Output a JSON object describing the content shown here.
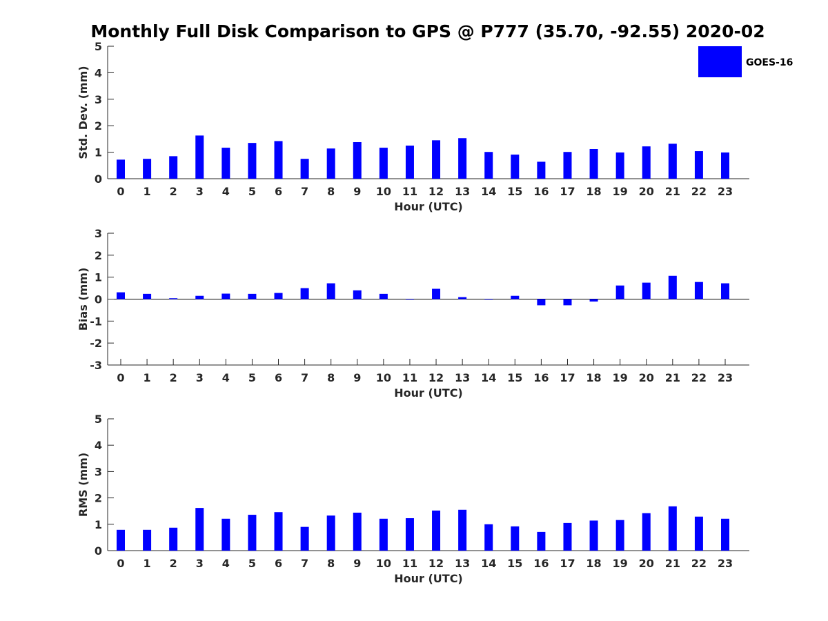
{
  "title": "Monthly Full Disk Comparison to GPS @ P777 (35.70, -92.55) 2020-02",
  "legend": {
    "label": "GOES-16",
    "color": "#0000ff",
    "position": "top-right"
  },
  "chart_data": [
    {
      "type": "bar",
      "xlabel": "Hour (UTC)",
      "ylabel": "Std. Dev. (mm)",
      "ylim": [
        0,
        5
      ],
      "yticks": [
        "0",
        "1",
        "2",
        "3",
        "4",
        "5"
      ],
      "categories": [
        "0",
        "1",
        "2",
        "3",
        "4",
        "5",
        "6",
        "7",
        "8",
        "9",
        "10",
        "11",
        "12",
        "13",
        "14",
        "15",
        "16",
        "17",
        "18",
        "19",
        "20",
        "21",
        "22",
        "23"
      ],
      "series": [
        {
          "name": "GOES-16",
          "color": "#0000ff",
          "values": [
            0.72,
            0.75,
            0.85,
            1.63,
            1.17,
            1.35,
            1.42,
            0.75,
            1.14,
            1.38,
            1.17,
            1.25,
            1.45,
            1.53,
            1.01,
            0.91,
            0.64,
            1.01,
            1.12,
            0.99,
            1.22,
            1.32,
            1.04,
            0.99
          ]
        }
      ]
    },
    {
      "type": "bar",
      "xlabel": "Hour (UTC)",
      "ylabel": "Bias (mm)",
      "ylim": [
        -3,
        3
      ],
      "yticks": [
        "-3",
        "-2",
        "-1",
        "0",
        "1",
        "2",
        "3"
      ],
      "categories": [
        "0",
        "1",
        "2",
        "3",
        "4",
        "5",
        "6",
        "7",
        "8",
        "9",
        "10",
        "11",
        "12",
        "13",
        "14",
        "15",
        "16",
        "17",
        "18",
        "19",
        "20",
        "21",
        "22",
        "23"
      ],
      "series": [
        {
          "name": "GOES-16",
          "color": "#0000ff",
          "values": [
            0.31,
            0.24,
            0.04,
            0.15,
            0.25,
            0.24,
            0.28,
            0.5,
            0.72,
            0.4,
            0.24,
            -0.02,
            0.47,
            0.09,
            0.0,
            0.15,
            -0.28,
            -0.28,
            -0.11,
            0.62,
            0.75,
            1.06,
            0.78,
            0.72
          ]
        }
      ]
    },
    {
      "type": "bar",
      "xlabel": "Hour (UTC)",
      "ylabel": "RMS (mm)",
      "ylim": [
        0,
        5
      ],
      "yticks": [
        "0",
        "1",
        "2",
        "3",
        "4",
        "5"
      ],
      "categories": [
        "0",
        "1",
        "2",
        "3",
        "4",
        "5",
        "6",
        "7",
        "8",
        "9",
        "10",
        "11",
        "12",
        "13",
        "14",
        "15",
        "16",
        "17",
        "18",
        "19",
        "20",
        "21",
        "22",
        "23"
      ],
      "series": [
        {
          "name": "GOES-16",
          "color": "#0000ff",
          "values": [
            0.79,
            0.79,
            0.87,
            1.62,
            1.21,
            1.36,
            1.46,
            0.9,
            1.33,
            1.44,
            1.21,
            1.23,
            1.52,
            1.55,
            1.0,
            0.92,
            0.71,
            1.05,
            1.14,
            1.16,
            1.42,
            1.68,
            1.29,
            1.21
          ]
        }
      ]
    }
  ]
}
